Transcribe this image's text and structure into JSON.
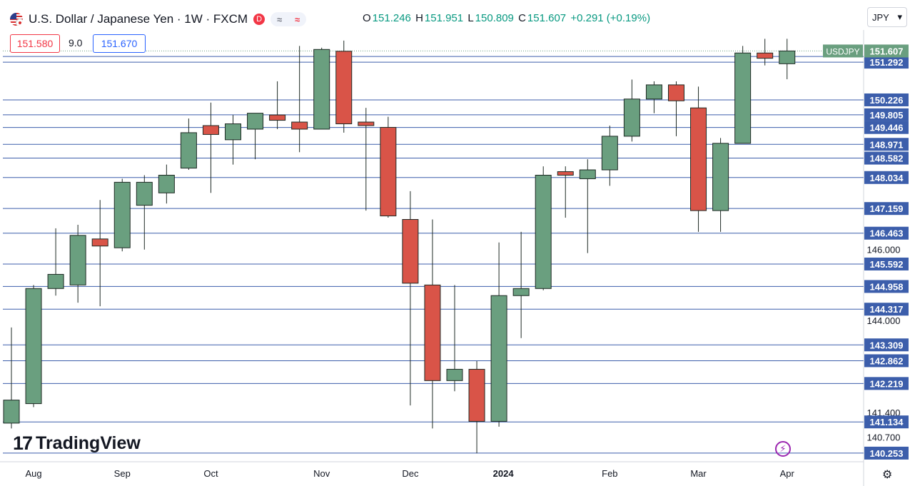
{
  "header": {
    "title": "U.S. Dollar / Japanese Yen · 1W · FXCM",
    "market_badge": "D",
    "pill_left": "≈",
    "pill_right": "≈",
    "ohlc": {
      "o_label": "O",
      "o": "151.246",
      "h_label": "H",
      "h": "151.951",
      "l_label": "L",
      "l": "150.809",
      "c_label": "C",
      "c": "151.607",
      "change": "+0.291 (+0.19%)"
    }
  },
  "trade": {
    "bid": "151.580",
    "spread": "9.0",
    "ask": "151.670"
  },
  "currency_select": {
    "value": "JPY",
    "arrow": "▾"
  },
  "branding": {
    "mark": "17",
    "word": "TradingView"
  },
  "icons": {
    "settings": "gear-icon",
    "flash": "lightning-icon",
    "flag": "us-jp-flag-icon"
  },
  "colors": {
    "up": "#6a9f7f",
    "down": "#d95448",
    "line": "#3c5eab",
    "current_label": "#6a9f7f"
  },
  "chart_data": {
    "type": "candlestick",
    "symbol": "USDJPY",
    "interval": "1W",
    "x_labels": [
      {
        "label": "Aug",
        "index": 1
      },
      {
        "label": "Sep",
        "index": 5
      },
      {
        "label": "Oct",
        "index": 9
      },
      {
        "label": "Nov",
        "index": 14
      },
      {
        "label": "Dec",
        "index": 18
      },
      {
        "label": "2024",
        "index": 22
      },
      {
        "label": "Feb",
        "index": 27
      },
      {
        "label": "Mar",
        "index": 31
      },
      {
        "label": "Apr",
        "index": 35
      }
    ],
    "ylim": [
      140.05,
      152.2
    ],
    "y_ticks": [
      "146.000",
      "144.000",
      "141.400",
      "140.700"
    ],
    "candles": [
      {
        "o": 141.1,
        "h": 143.8,
        "l": 140.95,
        "c": 141.75
      },
      {
        "o": 141.65,
        "h": 145.0,
        "l": 141.55,
        "c": 144.9
      },
      {
        "o": 144.9,
        "h": 146.6,
        "l": 144.7,
        "c": 145.3
      },
      {
        "o": 145.0,
        "h": 146.7,
        "l": 144.5,
        "c": 146.4
      },
      {
        "o": 146.3,
        "h": 147.4,
        "l": 144.4,
        "c": 146.1
      },
      {
        "o": 146.05,
        "h": 148.0,
        "l": 145.95,
        "c": 147.9
      },
      {
        "o": 147.25,
        "h": 148.1,
        "l": 146.0,
        "c": 147.9
      },
      {
        "o": 147.6,
        "h": 148.4,
        "l": 147.3,
        "c": 148.1
      },
      {
        "o": 148.3,
        "h": 149.7,
        "l": 148.25,
        "c": 149.3
      },
      {
        "o": 149.5,
        "h": 150.15,
        "l": 147.6,
        "c": 149.25
      },
      {
        "o": 149.1,
        "h": 149.8,
        "l": 148.4,
        "c": 149.55
      },
      {
        "o": 149.4,
        "h": 149.85,
        "l": 148.55,
        "c": 149.85
      },
      {
        "o": 149.8,
        "h": 150.75,
        "l": 149.4,
        "c": 149.65
      },
      {
        "o": 149.6,
        "h": 151.75,
        "l": 148.75,
        "c": 149.4
      },
      {
        "o": 149.4,
        "h": 151.7,
        "l": 149.4,
        "c": 151.65
      },
      {
        "o": 151.6,
        "h": 151.9,
        "l": 149.3,
        "c": 149.55
      },
      {
        "o": 149.6,
        "h": 150.0,
        "l": 147.1,
        "c": 149.5
      },
      {
        "o": 149.45,
        "h": 149.75,
        "l": 146.9,
        "c": 146.95
      },
      {
        "o": 146.85,
        "h": 147.65,
        "l": 141.6,
        "c": 145.05
      },
      {
        "o": 145.0,
        "h": 146.85,
        "l": 140.95,
        "c": 142.3
      },
      {
        "o": 142.3,
        "h": 145.0,
        "l": 142.0,
        "c": 142.62
      },
      {
        "o": 142.62,
        "h": 142.85,
        "l": 140.25,
        "c": 141.15
      },
      {
        "o": 141.15,
        "h": 146.2,
        "l": 141.0,
        "c": 144.7
      },
      {
        "o": 144.7,
        "h": 146.5,
        "l": 143.5,
        "c": 144.9
      },
      {
        "o": 144.9,
        "h": 148.35,
        "l": 144.85,
        "c": 148.1
      },
      {
        "o": 148.2,
        "h": 148.35,
        "l": 146.9,
        "c": 148.1
      },
      {
        "o": 148.0,
        "h": 148.55,
        "l": 145.9,
        "c": 148.25
      },
      {
        "o": 148.25,
        "h": 149.5,
        "l": 147.8,
        "c": 149.2
      },
      {
        "o": 149.2,
        "h": 150.8,
        "l": 149.05,
        "c": 150.25
      },
      {
        "o": 150.25,
        "h": 150.75,
        "l": 149.85,
        "c": 150.65
      },
      {
        "o": 150.65,
        "h": 150.75,
        "l": 149.2,
        "c": 150.2
      },
      {
        "o": 150.0,
        "h": 150.6,
        "l": 146.5,
        "c": 147.1
      },
      {
        "o": 147.1,
        "h": 149.15,
        "l": 146.5,
        "c": 149.0
      },
      {
        "o": 149.0,
        "h": 151.75,
        "l": 149.0,
        "c": 151.55
      },
      {
        "o": 151.55,
        "h": 151.95,
        "l": 151.2,
        "c": 151.4
      },
      {
        "o": 151.246,
        "h": 151.951,
        "l": 150.809,
        "c": 151.607
      }
    ],
    "levels": [
      "151.452",
      "151.292",
      "150.226",
      "149.805",
      "149.446",
      "148.971",
      "148.582",
      "148.034",
      "147.159",
      "146.463",
      "145.592",
      "144.958",
      "144.317",
      "143.309",
      "142.862",
      "142.219",
      "141.134",
      "140.253"
    ],
    "last_price": {
      "label": "USDJPY",
      "value": "151.607"
    }
  }
}
